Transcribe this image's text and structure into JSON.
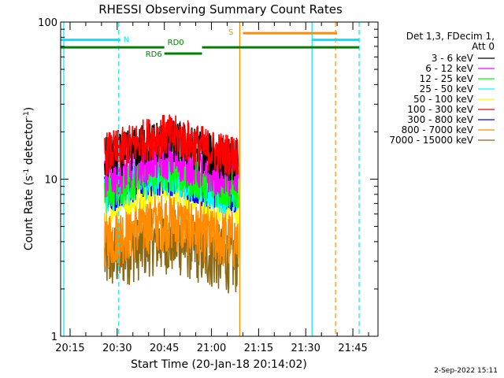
{
  "chart_data": {
    "type": "line",
    "title": "RHESSI Observing Summary Count Rates",
    "xlabel": "Start Time (20-Jan-18 20:14:02)",
    "ylabel_main": "Count Rate (s",
    "ylabel_sup1": "-1",
    "ylabel_mid": " detector",
    "ylabel_sup2": "-1",
    "ylabel_end": ")",
    "yscale": "log",
    "ylim": [
      1,
      100
    ],
    "xlim_minutes": [
      "20:12:00",
      "21:53:00"
    ],
    "x_ticks": [
      "20:15",
      "20:30",
      "20:45",
      "21:00",
      "21:15",
      "21:30",
      "21:45"
    ],
    "y_ticks": [
      "1",
      "10",
      "100"
    ],
    "legend_header": [
      "Det 1,3, FDecim 1,",
      "Att 0"
    ],
    "legend_position": "right",
    "series": [
      {
        "name": "3 - 6 keV",
        "color": "#000000",
        "approx_level": 13
      },
      {
        "name": "6 - 12 keV",
        "color": "#ff00ff",
        "approx_level": 10
      },
      {
        "name": "12 - 25 keV",
        "color": "#00ff00",
        "approx_level": 8.5
      },
      {
        "name": "25 - 50 keV",
        "color": "#00ffff",
        "approx_level": 8
      },
      {
        "name": "50 - 100 keV",
        "color": "#ffff00",
        "approx_level": 7
      },
      {
        "name": "100 - 300 keV",
        "color": "#ff0000",
        "approx_level": 14
      },
      {
        "name": "300 - 800 keV",
        "color": "#0000ff",
        "approx_level": 8
      },
      {
        "name": "800 - 7000 keV",
        "color": "#ff8c00",
        "approx_level": 4
      },
      {
        "name": "7000 - 15000 keV",
        "color": "#8b6914",
        "approx_level": 3
      }
    ],
    "data_window": {
      "start": "20:26:00",
      "end": "21:08:30"
    },
    "orbit_bars": [
      {
        "label": "N",
        "color": "#00e5ff",
        "segments": [
          [
            "20:12:00",
            "20:31:00"
          ],
          [
            "21:32:00",
            "21:47:00"
          ]
        ],
        "level": 77
      },
      {
        "label": "S",
        "color": "#ff8c00",
        "segments": [
          [
            "21:10:00",
            "21:40:00"
          ]
        ],
        "level": 85
      },
      {
        "label": "RD0",
        "color": "#008000",
        "segments": [
          [
            "20:12:00",
            "20:45:00"
          ],
          [
            "20:57:00",
            "21:47:00"
          ]
        ],
        "level": 69
      },
      {
        "label": "RD6",
        "color": "#008000",
        "segments": [
          [
            "20:45:00",
            "20:57:00"
          ]
        ],
        "level": 63
      }
    ],
    "vertical_lines": [
      {
        "time": "20:13:00",
        "color": "#00e5ff",
        "style": "solid"
      },
      {
        "time": "20:30:30",
        "color": "#00e5ff",
        "style": "dashed"
      },
      {
        "time": "21:09:00",
        "color": "#ff8c00",
        "style": "solid"
      },
      {
        "time": "21:32:00",
        "color": "#00e5ff",
        "style": "solid"
      },
      {
        "time": "21:39:30",
        "color": "#ff8c00",
        "style": "dashed"
      },
      {
        "time": "21:47:00",
        "color": "#00e5ff",
        "style": "dashed"
      }
    ],
    "footer_date": "2-Sep-2022 15:11"
  }
}
